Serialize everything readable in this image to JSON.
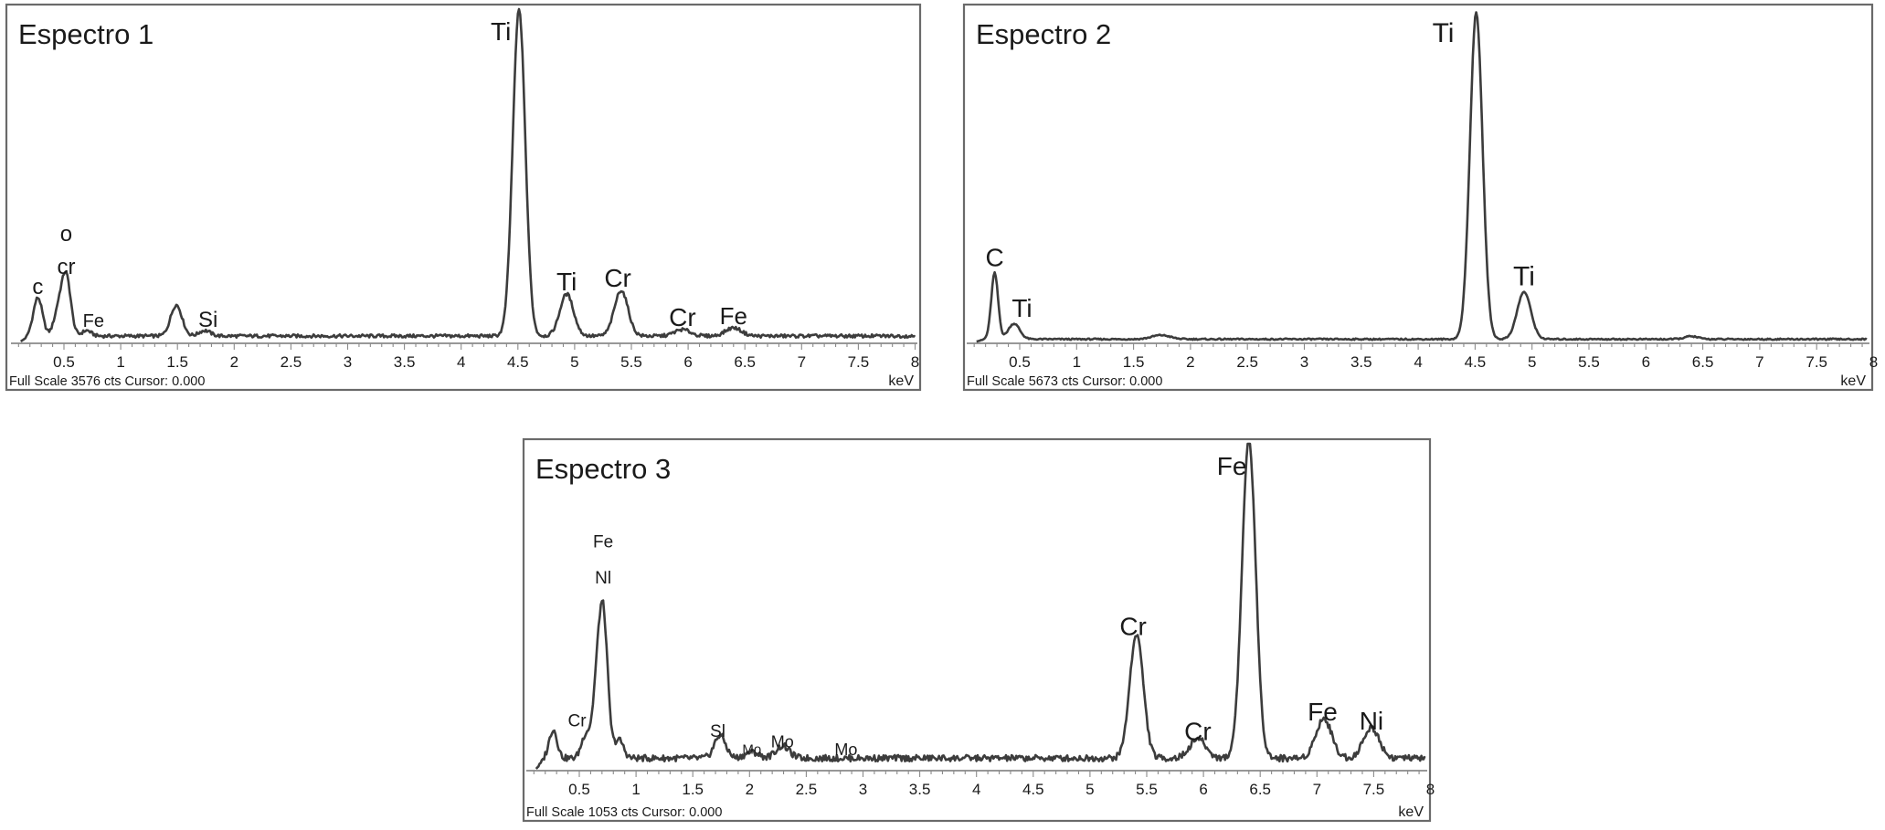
{
  "chart_data": [
    {
      "type": "line",
      "title": "Espectro 1",
      "footer": "Full Scale 3576 cts Cursor: 0.000",
      "xlabel": "keV",
      "xlim": [
        0.0,
        8.2
      ],
      "ylim": [
        0,
        3576
      ],
      "x_ticks": [
        "0.5",
        "1",
        "1.5",
        "2",
        "2.5",
        "3",
        "3.5",
        "4",
        "4.5",
        "5",
        "5.5",
        "6",
        "6.5",
        "7",
        "7.5",
        "8"
      ],
      "grid": false,
      "background_counts": 60,
      "peaks": [
        {
          "x": 0.27,
          "height": 420,
          "width": 0.04
        },
        {
          "x": 0.45,
          "height": 260,
          "width": 0.04
        },
        {
          "x": 0.52,
          "height": 640,
          "width": 0.04
        },
        {
          "x": 0.7,
          "height": 60,
          "width": 0.04
        },
        {
          "x": 1.49,
          "height": 340,
          "width": 0.05
        },
        {
          "x": 1.74,
          "height": 60,
          "width": 0.05
        },
        {
          "x": 4.51,
          "height": 3576,
          "width": 0.055
        },
        {
          "x": 4.93,
          "height": 460,
          "width": 0.06
        },
        {
          "x": 5.41,
          "height": 500,
          "width": 0.06
        },
        {
          "x": 5.95,
          "height": 70,
          "width": 0.07
        },
        {
          "x": 6.4,
          "height": 90,
          "width": 0.07
        }
      ],
      "labels": [
        {
          "text": "c",
          "x": 0.27,
          "size": 24,
          "peak": 420
        },
        {
          "text": "cr",
          "x": 0.52,
          "size": 24,
          "peak": 640
        },
        {
          "text": "o",
          "x": 0.52,
          "size": 24,
          "peak": 1000
        },
        {
          "text": "Fe",
          "x": 0.76,
          "size": 20,
          "peak": 60
        },
        {
          "text": "Si",
          "x": 1.77,
          "size": 24,
          "peak": 60
        },
        {
          "text": "Ti",
          "x": 4.35,
          "size": 28,
          "peak": 3576
        },
        {
          "text": "Ti",
          "x": 4.93,
          "size": 28,
          "peak": 460
        },
        {
          "text": "Cr",
          "x": 5.38,
          "size": 28,
          "peak": 500
        },
        {
          "text": "Cr",
          "x": 5.95,
          "size": 28,
          "peak": 70
        },
        {
          "text": "Fe",
          "x": 6.4,
          "size": 26,
          "peak": 90
        }
      ]
    },
    {
      "type": "line",
      "title": "Espectro 2",
      "footer": "Full Scale 5673 cts Cursor: 0.000",
      "xlabel": "keV",
      "xlim": [
        0.0,
        8.2
      ],
      "ylim": [
        0,
        5673
      ],
      "x_ticks": [
        "0.5",
        "1",
        "1.5",
        "2",
        "2.5",
        "3",
        "3.5",
        "4",
        "4.5",
        "5",
        "5.5",
        "6",
        "6.5",
        "7",
        "7.5",
        "8"
      ],
      "grid": false,
      "background_counts": 40,
      "peaks": [
        {
          "x": 0.28,
          "height": 1150,
          "width": 0.03
        },
        {
          "x": 0.45,
          "height": 270,
          "width": 0.05
        },
        {
          "x": 1.74,
          "height": 70,
          "width": 0.08
        },
        {
          "x": 4.51,
          "height": 5673,
          "width": 0.055
        },
        {
          "x": 4.93,
          "height": 820,
          "width": 0.06
        },
        {
          "x": 6.4,
          "height": 50,
          "width": 0.06
        }
      ],
      "labels": [
        {
          "text": "C",
          "x": 0.28,
          "size": 28,
          "peak": 1150
        },
        {
          "text": "Ti",
          "x": 0.52,
          "size": 28,
          "peak": 270
        },
        {
          "text": "Ti",
          "x": 4.22,
          "size": 30,
          "peak": 5673
        },
        {
          "text": "Ti",
          "x": 4.93,
          "size": 30,
          "peak": 820
        }
      ]
    },
    {
      "type": "line",
      "title": "Espectro 3",
      "footer": "Full Scale 1053 cts Cursor: 0.000",
      "xlabel": "keV",
      "xlim": [
        0.0,
        8.2
      ],
      "ylim": [
        0,
        1053
      ],
      "x_ticks": [
        "0.5",
        "1",
        "1.5",
        "2",
        "2.5",
        "3",
        "3.5",
        "4",
        "4.5",
        "5",
        "5.5",
        "6",
        "6.5",
        "7",
        "7.5",
        "8"
      ],
      "grid": false,
      "background_counts": 35,
      "peaks": [
        {
          "x": 0.27,
          "height": 95,
          "width": 0.035
        },
        {
          "x": 0.56,
          "height": 80,
          "width": 0.04
        },
        {
          "x": 0.65,
          "height": 170,
          "width": 0.035
        },
        {
          "x": 0.71,
          "height": 470,
          "width": 0.04
        },
        {
          "x": 0.85,
          "height": 60,
          "width": 0.04
        },
        {
          "x": 1.74,
          "height": 75,
          "width": 0.05
        },
        {
          "x": 2.02,
          "height": 20,
          "width": 0.06
        },
        {
          "x": 2.29,
          "height": 40,
          "width": 0.06
        },
        {
          "x": 5.41,
          "height": 410,
          "width": 0.06
        },
        {
          "x": 5.95,
          "height": 65,
          "width": 0.07
        },
        {
          "x": 6.4,
          "height": 1053,
          "width": 0.06
        },
        {
          "x": 7.06,
          "height": 130,
          "width": 0.07
        },
        {
          "x": 7.48,
          "height": 100,
          "width": 0.07
        }
      ],
      "labels": [
        {
          "text": "Cr",
          "x": 0.48,
          "size": 19,
          "peak": 110
        },
        {
          "text": "Nl",
          "x": 0.71,
          "size": 19,
          "peak": 580
        },
        {
          "text": "Fe",
          "x": 0.71,
          "size": 19,
          "peak": 700
        },
        {
          "text": "Sl",
          "x": 1.72,
          "size": 19,
          "peak": 75
        },
        {
          "text": "Mo",
          "x": 2.02,
          "size": 15,
          "peak": 20
        },
        {
          "text": "Mo",
          "x": 2.29,
          "size": 18,
          "peak": 40
        },
        {
          "text": "Mo",
          "x": 2.85,
          "size": 18,
          "peak": 15
        },
        {
          "text": "Cr",
          "x": 5.38,
          "size": 28,
          "peak": 410
        },
        {
          "text": "Cr",
          "x": 5.95,
          "size": 28,
          "peak": 65
        },
        {
          "text": "Fe",
          "x": 6.25,
          "size": 28,
          "peak": 1053
        },
        {
          "text": "Fe",
          "x": 7.05,
          "size": 28,
          "peak": 130
        },
        {
          "text": "Ni",
          "x": 7.48,
          "size": 28,
          "peak": 100
        }
      ]
    }
  ]
}
